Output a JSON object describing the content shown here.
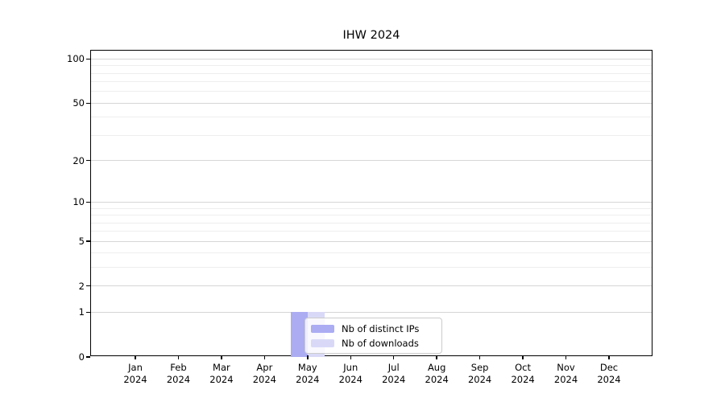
{
  "chart_data": {
    "type": "bar",
    "title": "IHW 2024",
    "categories": [
      {
        "month": "Jan",
        "year": "2024"
      },
      {
        "month": "Feb",
        "year": "2024"
      },
      {
        "month": "Mar",
        "year": "2024"
      },
      {
        "month": "Apr",
        "year": "2024"
      },
      {
        "month": "May",
        "year": "2024"
      },
      {
        "month": "Jun",
        "year": "2024"
      },
      {
        "month": "Jul",
        "year": "2024"
      },
      {
        "month": "Aug",
        "year": "2024"
      },
      {
        "month": "Sep",
        "year": "2024"
      },
      {
        "month": "Oct",
        "year": "2024"
      },
      {
        "month": "Nov",
        "year": "2024"
      },
      {
        "month": "Dec",
        "year": "2024"
      }
    ],
    "series": [
      {
        "name": "Nb of distinct IPs",
        "color": "#abacf2",
        "values": [
          0,
          0,
          0,
          0,
          1,
          0,
          0,
          0,
          0,
          0,
          0,
          0
        ]
      },
      {
        "name": "Nb of downloads",
        "color": "#d9d9f7",
        "values": [
          0,
          0,
          0,
          0,
          1,
          0,
          0,
          0,
          0,
          0,
          0,
          0
        ]
      }
    ],
    "yscale": "log1p",
    "ylim": [
      0,
      114
    ],
    "yticks": [
      0,
      1,
      2,
      5,
      10,
      20,
      50,
      100
    ],
    "yticks_minor": [
      3,
      4,
      6,
      7,
      8,
      9,
      30,
      40,
      60,
      70,
      80,
      90
    ],
    "grid": "horizontal",
    "legend": {
      "position": "lower-center-inside",
      "border_color": "#cccccc",
      "background": "rgba(255,255,255,0.8)"
    },
    "colors": {
      "frame": "#000000",
      "gridline_major": "#d6d6d6",
      "gridline_minor": "#eeeeee",
      "text": "#000000"
    }
  }
}
